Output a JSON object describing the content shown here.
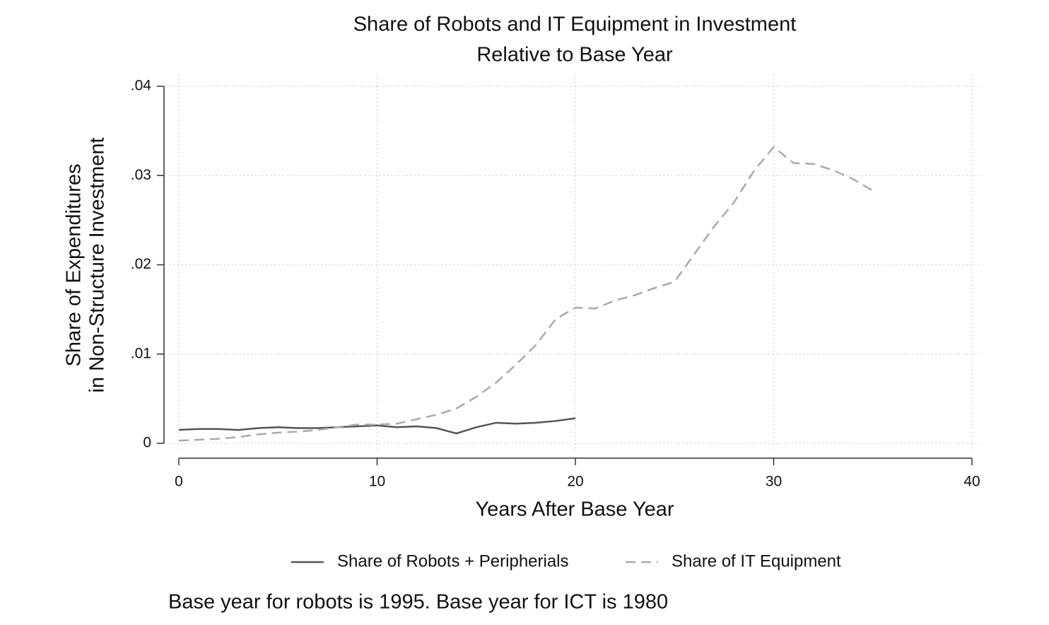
{
  "chart_data": {
    "type": "line",
    "title": [
      "Share of Robots and IT Equipment in Investment",
      "Relative to Base Year"
    ],
    "ylabel": [
      "Share of Expenditures",
      "in Non-Structure Investment"
    ],
    "xlabel": "Years After Base Year",
    "note": "Base year for robots is 1995. Base year for ICT is 1980",
    "xlim": [
      0,
      40
    ],
    "xticks": [
      0,
      10,
      20,
      30,
      40
    ],
    "ylim": [
      0,
      0.04
    ],
    "yticks": [
      0,
      {
        "value": 0.01,
        "label": ".01"
      },
      {
        "value": 0.02,
        "label": ".02"
      },
      {
        "value": 0.03,
        "label": ".03"
      },
      {
        "value": 0.04,
        "label": ".04"
      }
    ],
    "grid": true,
    "series": [
      {
        "name": "Share of Robots + Peripherials",
        "color": "#555555",
        "dash": "solid",
        "x": [
          0,
          1,
          2,
          3,
          4,
          5,
          6,
          7,
          8,
          9,
          10,
          11,
          12,
          13,
          14,
          15,
          16,
          17,
          18,
          19,
          20
        ],
        "values": [
          0.0015,
          0.0016,
          0.0016,
          0.0015,
          0.0017,
          0.0018,
          0.0017,
          0.0017,
          0.0018,
          0.0019,
          0.002,
          0.0018,
          0.0019,
          0.0017,
          0.0011,
          0.0018,
          0.0023,
          0.0022,
          0.0023,
          0.0025,
          0.0028
        ]
      },
      {
        "name": "Share of IT Equipment",
        "color": "#aaaaaa",
        "dash": "dashed",
        "x": [
          0,
          1,
          2,
          3,
          4,
          5,
          6,
          7,
          8,
          9,
          10,
          11,
          12,
          13,
          14,
          15,
          16,
          17,
          18,
          19,
          20,
          21,
          22,
          23,
          24,
          25,
          26,
          27,
          28,
          29,
          30,
          31,
          32,
          33,
          34,
          35
        ],
        "values": [
          0.0003,
          0.0004,
          0.0005,
          0.0007,
          0.001,
          0.0012,
          0.0013,
          0.0015,
          0.0018,
          0.0021,
          0.0021,
          0.0022,
          0.0027,
          0.0032,
          0.0039,
          0.0052,
          0.0068,
          0.0088,
          0.011,
          0.0139,
          0.0152,
          0.0151,
          0.016,
          0.0166,
          0.0174,
          0.0181,
          0.0212,
          0.0243,
          0.027,
          0.0305,
          0.0332,
          0.0314,
          0.0313,
          0.0306,
          0.0296,
          0.0283
        ]
      }
    ]
  }
}
